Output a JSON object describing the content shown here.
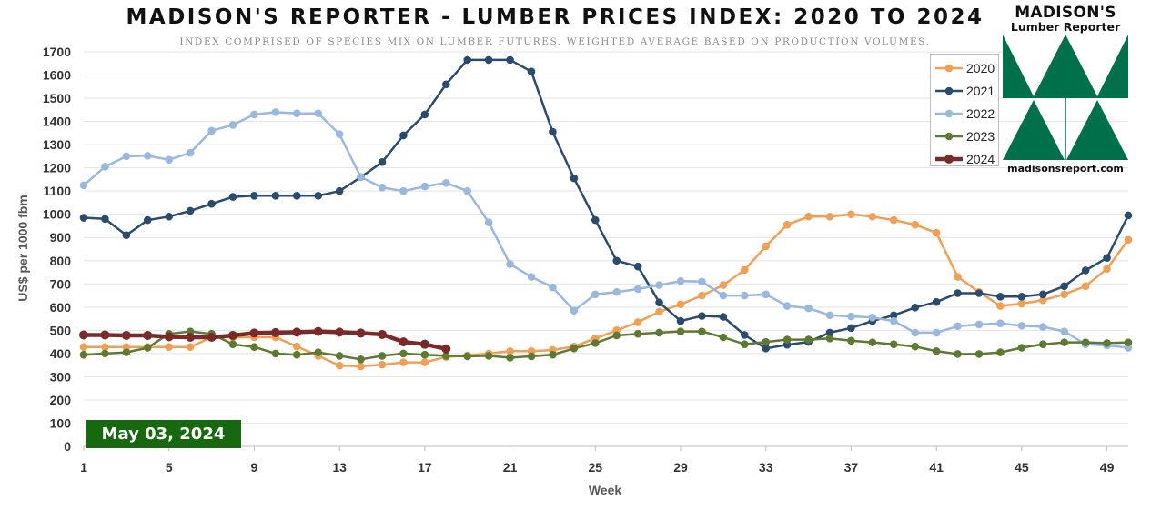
{
  "header": {
    "title": "MADISON'S REPORTER - LUMBER PRICES INDEX: 2020 TO 2024",
    "subtitle": "INDEX COMPRISED OF SPECIES MIX ON LUMBER FUTURES. WEIGHTED AVERAGE BASED ON PRODUCTION VOLUMES."
  },
  "logo": {
    "name": "MADISON'S",
    "subname": "Lumber Reporter",
    "url": "madisonsreport.com",
    "color": "#00704a"
  },
  "date_badge": "May 03, 2024",
  "chart_data": {
    "type": "line",
    "title": "MADISON'S REPORTER - LUMBER PRICES INDEX: 2020 TO 2024",
    "subtitle": "INDEX COMPRISED OF SPECIES MIX ON LUMBER FUTURES. WEIGHTED AVERAGE BASED ON PRODUCTION VOLUMES.",
    "xlabel": "Week",
    "ylabel": "US$ per 1000 fbm",
    "xlim": [
      1,
      50
    ],
    "ylim": [
      0,
      1700
    ],
    "xticks": [
      1,
      5,
      9,
      13,
      17,
      21,
      25,
      29,
      33,
      37,
      41,
      45,
      49
    ],
    "yticks": [
      0,
      100,
      200,
      300,
      400,
      500,
      600,
      700,
      800,
      900,
      1000,
      1100,
      1200,
      1300,
      1400,
      1500,
      1600,
      1700
    ],
    "grid": true,
    "legend": "top-right",
    "series": [
      {
        "name": "2020",
        "color": "#f0a056",
        "x": [
          1,
          2,
          3,
          4,
          5,
          6,
          7,
          8,
          9,
          10,
          11,
          12,
          13,
          14,
          15,
          16,
          17,
          18,
          19,
          20,
          21,
          22,
          23,
          24,
          25,
          26,
          27,
          28,
          29,
          30,
          31,
          32,
          33,
          34,
          35,
          36,
          37,
          38,
          39,
          40,
          41,
          42,
          43,
          44,
          45,
          46,
          47,
          48,
          49,
          50
        ],
        "y": [
          428,
          428,
          428,
          428,
          428,
          428,
          470,
          470,
          470,
          470,
          430,
          390,
          348,
          345,
          352,
          362,
          362,
          385,
          392,
          400,
          410,
          410,
          415,
          430,
          465,
          500,
          535,
          580,
          612,
          650,
          695,
          760,
          862,
          955,
          990,
          990,
          1000,
          990,
          975,
          955,
          920,
          730,
          665,
          605,
          615,
          630,
          655,
          690,
          765,
          890
        ]
      },
      {
        "name": "2021",
        "color": "#2a4b6d",
        "x": [
          1,
          2,
          3,
          4,
          5,
          6,
          7,
          8,
          9,
          10,
          11,
          12,
          13,
          14,
          15,
          16,
          17,
          18,
          19,
          20,
          21,
          22,
          23,
          24,
          25,
          26,
          27,
          28,
          29,
          30,
          31,
          32,
          33,
          34,
          35,
          36,
          37,
          38,
          39,
          40,
          41,
          42,
          43,
          44,
          45,
          46,
          47,
          48,
          49,
          50
        ],
        "y": [
          985,
          980,
          910,
          975,
          990,
          1015,
          1045,
          1075,
          1080,
          1080,
          1080,
          1080,
          1100,
          1160,
          1225,
          1340,
          1430,
          1560,
          1665,
          1665,
          1665,
          1615,
          1355,
          1155,
          975,
          800,
          775,
          620,
          540,
          562,
          558,
          480,
          422,
          438,
          450,
          490,
          510,
          540,
          565,
          598,
          622,
          660,
          660,
          645,
          645,
          655,
          690,
          758,
          812,
          995
        ]
      },
      {
        "name": "2022",
        "color": "#9ab8de",
        "x": [
          1,
          2,
          3,
          4,
          5,
          6,
          7,
          8,
          9,
          10,
          11,
          12,
          13,
          14,
          15,
          16,
          17,
          18,
          19,
          20,
          21,
          22,
          23,
          24,
          25,
          26,
          27,
          28,
          29,
          30,
          31,
          32,
          33,
          34,
          35,
          36,
          37,
          38,
          39,
          40,
          41,
          42,
          43,
          44,
          45,
          46,
          47,
          48,
          49,
          50
        ],
        "y": [
          1125,
          1205,
          1250,
          1252,
          1235,
          1265,
          1360,
          1385,
          1430,
          1440,
          1435,
          1435,
          1345,
          1160,
          1115,
          1100,
          1120,
          1135,
          1100,
          965,
          785,
          730,
          685,
          585,
          655,
          665,
          678,
          695,
          712,
          710,
          650,
          650,
          655,
          605,
          595,
          565,
          560,
          555,
          540,
          490,
          490,
          518,
          525,
          530,
          520,
          515,
          495,
          440,
          435,
          425
        ]
      },
      {
        "name": "2023",
        "color": "#5e7a32",
        "x": [
          1,
          2,
          3,
          4,
          5,
          6,
          7,
          8,
          9,
          10,
          11,
          12,
          13,
          14,
          15,
          16,
          17,
          18,
          19,
          20,
          21,
          22,
          23,
          24,
          25,
          26,
          27,
          28,
          29,
          30,
          31,
          32,
          33,
          34,
          35,
          36,
          37,
          38,
          39,
          40,
          41,
          42,
          43,
          44,
          45,
          46,
          47,
          48,
          49,
          50
        ],
        "y": [
          395,
          400,
          405,
          425,
          485,
          495,
          485,
          440,
          428,
          400,
          395,
          405,
          390,
          375,
          390,
          400,
          395,
          390,
          388,
          390,
          382,
          388,
          395,
          422,
          445,
          478,
          485,
          490,
          495,
          495,
          470,
          440,
          450,
          460,
          460,
          465,
          455,
          448,
          440,
          430,
          410,
          398,
          398,
          405,
          425,
          440,
          448,
          448,
          445,
          448
        ]
      },
      {
        "name": "2024",
        "color": "#7a2a2a",
        "x": [
          1,
          2,
          3,
          4,
          5,
          6,
          7,
          8,
          9,
          10,
          11,
          12,
          13,
          14,
          15,
          16,
          17,
          18
        ],
        "y": [
          480,
          480,
          478,
          478,
          472,
          470,
          470,
          478,
          488,
          490,
          492,
          495,
          492,
          488,
          482,
          450,
          440,
          420
        ]
      }
    ]
  }
}
